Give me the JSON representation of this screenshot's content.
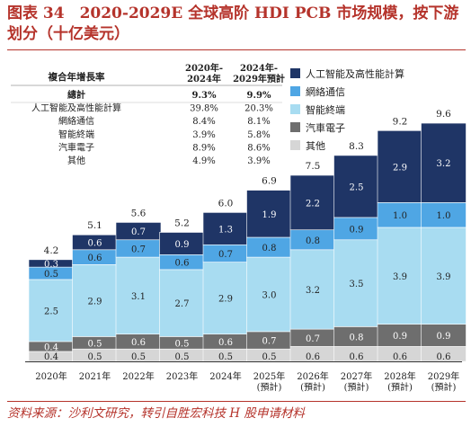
{
  "title": "图表 34　2020-2029E 全球高阶 HDI PCB 市场规模，按下游划分（十亿美元）",
  "source": "资料来源：沙利文研究，转引自胜宏科技 H 股申请材料",
  "colors": {
    "ai": "#1f3566",
    "network": "#4fa6e4",
    "smart": "#a8dcf1",
    "auto": "#6e6e6e",
    "other": "#d6d6d6"
  },
  "cagr_table": {
    "header": [
      "複合年增長率",
      "2020年-\n2024年",
      "2024年-\n2029年預計"
    ],
    "rows": [
      {
        "label": "總計",
        "v1": "9.3%",
        "v2": "9.9%",
        "bold": true
      },
      {
        "label": "人工智能及高性能計算",
        "v1": "39.8%",
        "v2": "20.3%"
      },
      {
        "label": "網絡通信",
        "v1": "8.4%",
        "v2": "8.1%"
      },
      {
        "label": "智能終端",
        "v1": "3.9%",
        "v2": "5.8%"
      },
      {
        "label": "汽車電子",
        "v1": "8.9%",
        "v2": "8.6%"
      },
      {
        "label": "其他",
        "v1": "4.9%",
        "v2": "3.9%"
      }
    ]
  },
  "chart_data": {
    "type": "bar",
    "stacked": true,
    "categories": [
      "2020年",
      "2021年",
      "2022年",
      "2023年",
      "2024年",
      "2025年\n(預計)",
      "2026年\n(預計)",
      "2027年\n(預計)",
      "2028年\n(預計)",
      "2029年\n(預計)"
    ],
    "totals": [
      "4.2",
      "5.1",
      "5.6",
      "5.2",
      "6.0",
      "6.9",
      "7.5",
      "8.3",
      "9.2",
      "9.6"
    ],
    "series": [
      {
        "name": "其他",
        "color_key": "other",
        "values": [
          0.4,
          0.5,
          0.5,
          0.5,
          0.5,
          0.5,
          0.6,
          0.6,
          0.6,
          0.6
        ],
        "labels": [
          "0.4",
          "0.5",
          "0.5",
          "0.5",
          "0.5",
          "0.5",
          "0.6",
          "0.6",
          "0.6",
          "0.6"
        ]
      },
      {
        "name": "汽車電子",
        "color_key": "auto",
        "values": [
          0.4,
          0.5,
          0.6,
          0.5,
          0.6,
          0.7,
          0.7,
          0.8,
          0.9,
          0.9
        ],
        "labels": [
          "0.4",
          "0.5",
          "0.6",
          "0.5",
          "0.6",
          "0.7",
          "0.7",
          "0.8",
          "0.9",
          "0.9"
        ]
      },
      {
        "name": "智能終端",
        "color_key": "smart",
        "values": [
          2.5,
          2.9,
          3.1,
          2.7,
          2.9,
          3.0,
          3.2,
          3.5,
          3.9,
          3.9
        ],
        "labels": [
          "2.5",
          "2.9",
          "3.1",
          "2.7",
          "2.9",
          "3.0",
          "3.2",
          "3.5",
          "3.9",
          "3.9"
        ]
      },
      {
        "name": "網絡通信",
        "color_key": "network",
        "values": [
          0.5,
          0.6,
          0.7,
          0.6,
          0.7,
          0.8,
          0.8,
          0.9,
          1.0,
          1.0
        ],
        "labels": [
          "0.5",
          "0.6",
          "0.7",
          "0.6",
          "0.7",
          "0.8",
          "0.8",
          "0.9",
          "1.0",
          "1.0"
        ]
      },
      {
        "name": "人工智能及高性能計算",
        "color_key": "ai",
        "values": [
          0.3,
          0.6,
          0.7,
          0.9,
          1.3,
          1.9,
          2.2,
          2.5,
          2.9,
          3.2
        ],
        "labels": [
          "0.3",
          "0.6",
          "0.7",
          "0.9",
          "1.3",
          "1.9",
          "2.2",
          "2.5",
          "2.9",
          "3.2"
        ]
      }
    ],
    "legend": [
      "人工智能及高性能計算",
      "網絡通信",
      "智能終端",
      "汽車電子",
      "其他"
    ],
    "legend_position": "top-right",
    "ylim": [
      0,
      10
    ],
    "grid": false
  }
}
